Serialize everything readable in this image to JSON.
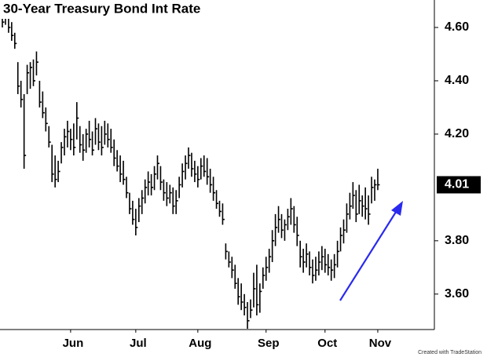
{
  "chart_data": {
    "type": "ohlc",
    "title": "30-Year Treasury Bond Int Rate",
    "footer_note": "Created with TradeStation",
    "color": "#000000",
    "categories": [
      null,
      null,
      null,
      null,
      null,
      null,
      null,
      null,
      null,
      null,
      null,
      null,
      null,
      null,
      null,
      null,
      null,
      null,
      null,
      null,
      null,
      null,
      "Jun",
      null,
      null,
      null,
      null,
      null,
      null,
      null,
      null,
      null,
      null,
      null,
      null,
      null,
      null,
      null,
      null,
      null,
      null,
      null,
      null,
      "Jul",
      null,
      null,
      null,
      null,
      null,
      null,
      null,
      null,
      null,
      null,
      null,
      null,
      null,
      null,
      null,
      null,
      null,
      null,
      null,
      "Aug",
      null,
      null,
      null,
      null,
      null,
      null,
      null,
      null,
      null,
      null,
      null,
      null,
      null,
      null,
      null,
      null,
      null,
      null,
      null,
      null,
      null,
      "Sep",
      null,
      null,
      null,
      null,
      null,
      null,
      null,
      null,
      null,
      null,
      null,
      null,
      null,
      null,
      null,
      null,
      null,
      null,
      "Oct",
      null,
      null,
      null,
      null,
      null,
      null,
      null,
      null,
      null,
      null,
      null,
      null,
      null,
      null,
      null,
      null,
      "Nov"
    ],
    "high": [
      4.66,
      4.67,
      4.66,
      4.62,
      4.58,
      4.47,
      4.4,
      4.35,
      4.46,
      4.47,
      4.48,
      4.51,
      4.4,
      4.36,
      4.3,
      4.23,
      4.16,
      4.12,
      4.1,
      4.17,
      4.22,
      4.25,
      4.22,
      4.24,
      4.32,
      4.23,
      4.2,
      4.22,
      4.25,
      4.21,
      4.26,
      4.24,
      4.23,
      4.25,
      4.24,
      4.22,
      4.18,
      4.14,
      4.12,
      4.1,
      4.04,
      3.98,
      3.95,
      3.92,
      3.96,
      3.99,
      4.03,
      4.06,
      4.05,
      4.08,
      4.12,
      4.08,
      4.03,
      4.02,
      4.01,
      4.0,
      3.99,
      4.04,
      4.09,
      4.12,
      4.15,
      4.13,
      4.1,
      4.08,
      4.11,
      4.12,
      4.11,
      4.07,
      4.04,
      3.99,
      3.95,
      3.94,
      3.79,
      3.76,
      3.74,
      3.71,
      3.66,
      3.64,
      3.6,
      3.57,
      3.58,
      3.68,
      3.71,
      3.64,
      3.7,
      3.74,
      3.77,
      3.84,
      3.9,
      3.93,
      3.9,
      3.88,
      3.92,
      3.96,
      3.93,
      3.89,
      3.8,
      3.77,
      3.79,
      3.76,
      3.73,
      3.74,
      3.76,
      3.78,
      3.77,
      3.75,
      3.73,
      3.75,
      3.8,
      3.85,
      3.88,
      3.94,
      3.98,
      4.02,
      3.99,
      4.01,
      3.97,
      4.0,
      3.97,
      4.04,
      4.03,
      4.07
    ],
    "low": [
      4.6,
      4.61,
      4.58,
      4.55,
      4.52,
      4.35,
      4.3,
      4.07,
      4.35,
      4.37,
      4.38,
      4.42,
      4.3,
      4.26,
      4.21,
      4.15,
      4.02,
      4.0,
      4.02,
      4.09,
      4.12,
      4.15,
      4.14,
      4.12,
      4.18,
      4.13,
      4.1,
      4.13,
      4.15,
      4.12,
      4.16,
      4.14,
      4.12,
      4.16,
      4.15,
      4.13,
      4.08,
      4.06,
      4.02,
      4.01,
      3.96,
      3.9,
      3.86,
      3.82,
      3.87,
      3.9,
      3.94,
      3.97,
      3.97,
      3.99,
      4.03,
      3.99,
      3.95,
      3.93,
      3.94,
      3.9,
      3.9,
      3.96,
      4.0,
      4.03,
      4.07,
      4.04,
      4.02,
      4.0,
      4.03,
      4.04,
      4.01,
      3.98,
      3.95,
      3.92,
      3.89,
      3.86,
      3.73,
      3.7,
      3.66,
      3.62,
      3.56,
      3.54,
      3.52,
      3.47,
      3.51,
      3.55,
      3.52,
      3.53,
      3.62,
      3.65,
      3.68,
      3.72,
      3.78,
      3.83,
      3.81,
      3.8,
      3.84,
      3.86,
      3.83,
      3.78,
      3.7,
      3.68,
      3.7,
      3.67,
      3.64,
      3.65,
      3.67,
      3.69,
      3.68,
      3.67,
      3.65,
      3.66,
      3.7,
      3.76,
      3.79,
      3.83,
      3.88,
      3.92,
      3.87,
      3.9,
      3.89,
      3.88,
      3.86,
      3.94,
      3.95,
      3.99
    ],
    "close": [
      4.62,
      4.65,
      4.6,
      4.57,
      4.54,
      4.38,
      4.33,
      4.12,
      4.43,
      4.45,
      4.4,
      4.47,
      4.32,
      4.28,
      4.24,
      4.17,
      4.05,
      4.03,
      4.06,
      4.15,
      4.19,
      4.21,
      4.18,
      4.15,
      4.26,
      4.16,
      4.14,
      4.2,
      4.18,
      4.14,
      4.22,
      4.17,
      4.15,
      4.2,
      4.18,
      4.15,
      4.11,
      4.08,
      4.05,
      4.03,
      3.98,
      3.92,
      3.88,
      3.85,
      3.93,
      3.96,
      4.0,
      4.02,
      4.0,
      4.05,
      4.09,
      4.02,
      3.98,
      3.96,
      3.98,
      3.93,
      3.95,
      4.01,
      4.06,
      4.09,
      4.12,
      4.07,
      4.05,
      4.03,
      4.08,
      4.06,
      4.04,
      4.01,
      3.98,
      3.94,
      3.91,
      3.88,
      3.76,
      3.72,
      3.69,
      3.64,
      3.59,
      3.57,
      3.55,
      3.5,
      3.54,
      3.62,
      3.56,
      3.61,
      3.67,
      3.7,
      3.74,
      3.8,
      3.85,
      3.88,
      3.84,
      3.86,
      3.89,
      3.92,
      3.86,
      3.82,
      3.74,
      3.72,
      3.75,
      3.7,
      3.67,
      3.69,
      3.72,
      3.74,
      3.71,
      3.7,
      3.69,
      3.71,
      3.76,
      3.82,
      3.84,
      3.9,
      3.93,
      3.97,
      3.9,
      3.95,
      3.93,
      3.92,
      3.9,
      4.0,
      4.01,
      4.01
    ],
    "ylim": [
      3.467,
      4.703
    ],
    "yticks": [
      {
        "value": 3.6,
        "label": "3.60"
      },
      {
        "value": 3.8,
        "label": "3.80"
      },
      {
        "value": 4.2,
        "label": "4.20"
      },
      {
        "value": 4.4,
        "label": "4.40"
      },
      {
        "value": 4.6,
        "label": "4.60"
      }
    ]
  }
}
